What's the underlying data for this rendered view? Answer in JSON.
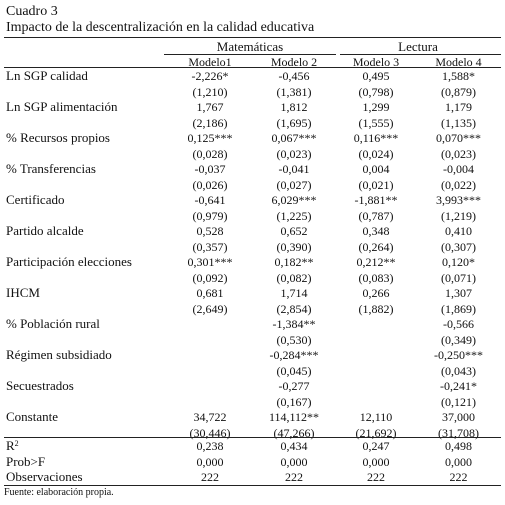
{
  "table": {
    "caption": "Cuadro 3",
    "title": "Impacto de la descentralización en la calidad educativa",
    "groups": [
      "Matemáticas",
      "Lectura"
    ],
    "models": [
      "Modelo1",
      "Modelo 2",
      "Modelo 3",
      "Modelo 4"
    ],
    "rows": [
      {
        "label": "Ln SGP calidad",
        "coef": [
          "-2,226*",
          "-0,456",
          "0,495",
          "1,588*"
        ],
        "se": [
          "(1,210)",
          "(1,381)",
          "(0,798)",
          "(0,879)"
        ]
      },
      {
        "label": "Ln SGP alimentación",
        "coef": [
          "1,767",
          "1,812",
          "1,299",
          "1,179"
        ],
        "se": [
          "(2,186)",
          "(1,695)",
          "(1,555)",
          "(1,135)"
        ]
      },
      {
        "label": "% Recursos propios",
        "coef": [
          "0,125***",
          "0,067***",
          "0,116***",
          "0,070***"
        ],
        "se": [
          "(0,028)",
          "(0,023)",
          "(0,024)",
          "(0,023)"
        ]
      },
      {
        "label": "% Transferencias",
        "coef": [
          "-0,037",
          "-0,041",
          "0,004",
          "-0,004"
        ],
        "se": [
          "(0,026)",
          "(0,027)",
          "(0,021)",
          "(0,022)"
        ]
      },
      {
        "label": "Certificado",
        "coef": [
          "-0,641",
          "6,029***",
          "-1,881**",
          "3,993***"
        ],
        "se": [
          "(0,979)",
          "(1,225)",
          "(0,787)",
          "(1,219)"
        ]
      },
      {
        "label": "Partido alcalde",
        "coef": [
          "0,528",
          "0,652",
          "0,348",
          "0,410"
        ],
        "se": [
          "(0,357)",
          "(0,390)",
          "(0,264)",
          "(0,307)"
        ]
      },
      {
        "label": "Participación elecciones",
        "coef": [
          "0,301***",
          "0,182**",
          "0,212**",
          "0,120*"
        ],
        "se": [
          "(0,092)",
          "(0,082)",
          "(0,083)",
          "(0,071)"
        ]
      },
      {
        "label": "IHCM",
        "coef": [
          "0,681",
          "1,714",
          "0,266",
          "1,307"
        ],
        "se": [
          "(2,649)",
          "(2,854)",
          "(1,882)",
          "(1,869)"
        ]
      },
      {
        "label": "% Población rural",
        "coef": [
          "",
          "-1,384**",
          "",
          "-0,566"
        ],
        "se": [
          "",
          "(0,530)",
          "",
          "(0,349)"
        ]
      },
      {
        "label": "Régimen subsidiado",
        "coef": [
          "",
          "-0,284***",
          "",
          "-0,250***"
        ],
        "se": [
          "",
          "(0,045)",
          "",
          "(0,043)"
        ]
      },
      {
        "label": "Secuestrados",
        "coef": [
          "",
          "-0,277",
          "",
          "-0,241*"
        ],
        "se": [
          "",
          "(0,167)",
          "",
          "(0,121)"
        ]
      },
      {
        "label": "Constante",
        "coef": [
          "34,722",
          "114,112**",
          "12,110",
          "37,000"
        ],
        "se": [
          "(30,446)",
          "(47,266)",
          "(21,692)",
          "(31,708)"
        ]
      }
    ],
    "stats": [
      {
        "label": "R",
        "label_sup": "2",
        "values": [
          "0,238",
          "0,434",
          "0,247",
          "0,498"
        ]
      },
      {
        "label": "Prob>F",
        "label_sup": "",
        "values": [
          "0,000",
          "0,000",
          "0,000",
          "0,000"
        ]
      },
      {
        "label": "Observaciones",
        "label_sup": "",
        "values": [
          "222",
          "222",
          "222",
          "222"
        ]
      }
    ],
    "source": "Fuente: elaboración propia."
  }
}
